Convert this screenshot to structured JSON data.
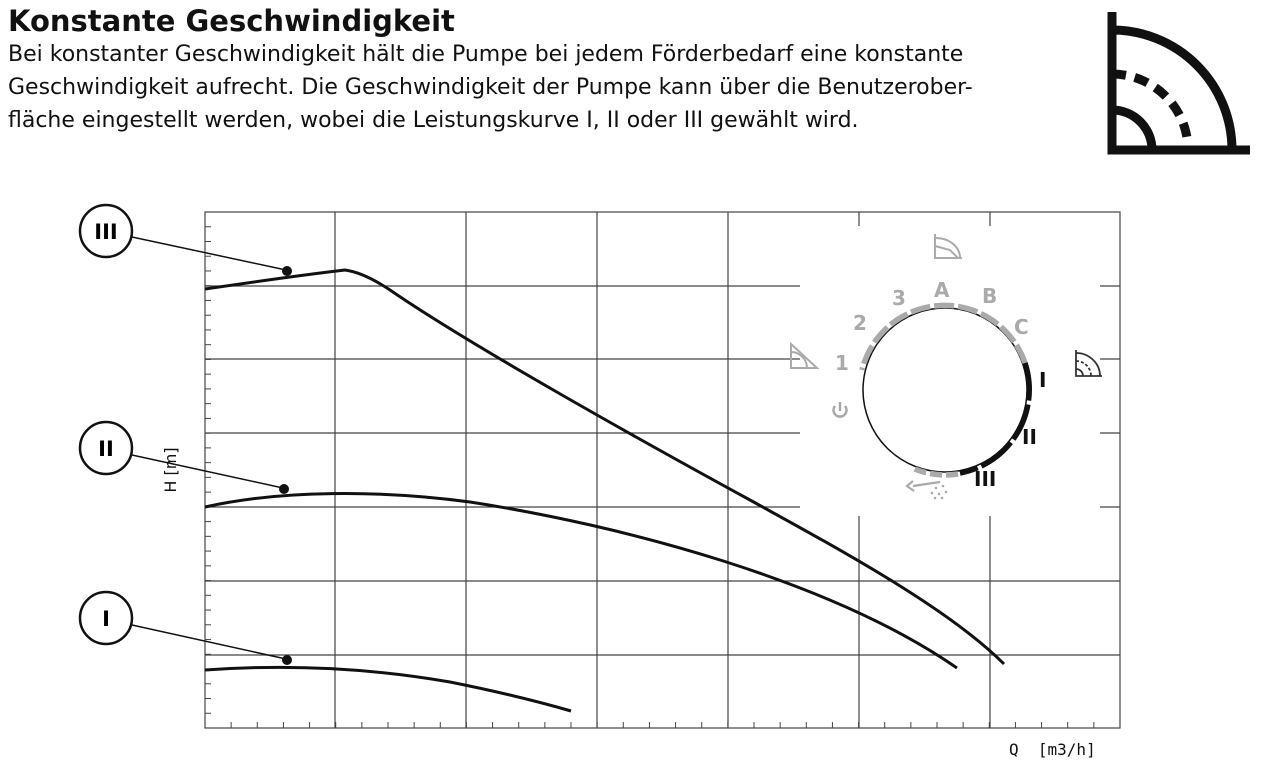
{
  "heading": {
    "title": "Konstante Geschwindigkeit",
    "description_lines": [
      "Bei konstanter Geschwindigkeit hält die Pumpe bei jedem Förderbedarf eine konstante",
      "Geschwindigkeit aufrecht. Die Geschwindigkeit der Pumpe kann über die Benutzerober-",
      "fläche eingestellt werden, wobei die Leistungskurve I, II oder III gewählt wird."
    ]
  },
  "mode_icon": "constant-speed-icon",
  "chart": {
    "ylabel": "H [m]",
    "xlabel": "Q  [m3/h]",
    "grid": true,
    "curves": [
      {
        "label": "III"
      },
      {
        "label": "II"
      },
      {
        "label": "I"
      }
    ]
  },
  "dial": {
    "settings_gray": [
      "1",
      "2",
      "3",
      "A",
      "B",
      "C"
    ],
    "settings_black": [
      "I",
      "II",
      "III"
    ],
    "icons": [
      "power-icon",
      "proportional-pressure-icon",
      "constant-pressure-icon",
      "constant-curve-icon",
      "air-vent-icon"
    ],
    "colors": {
      "inactive": "#aaaaaa",
      "active": "#111111"
    }
  }
}
